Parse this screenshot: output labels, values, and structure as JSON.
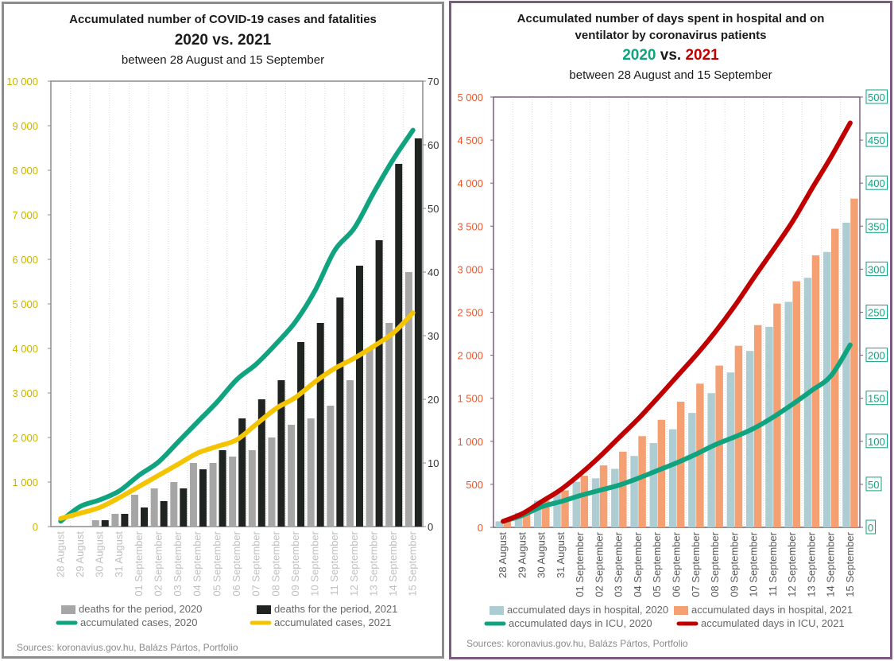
{
  "left": {
    "title": "Accumulated number of COVID-19 cases and fatalities",
    "years_title": "2020 vs. 2021",
    "subtitle": "between 28 August and 15 September",
    "source": "Sources: koronavius.gov.hu, Balázs Pártos, Portfolio"
  },
  "right": {
    "title_line1": "Accumulated number of days spent in hospital and on",
    "title_line2": "ventilator by coronavirus patients",
    "year_a": "2020",
    "vs": " vs. ",
    "year_b": "2021",
    "subtitle": "between 28 August and 15 September",
    "source": "Sources: koronavius.gov.hu, Balázs Pártos, Portfolio"
  },
  "colors": {
    "bar2020_left": "#a6a6a6",
    "bar2021_left": "#1f2420",
    "cases2020": "#10a37f",
    "cases2021": "#f5c400",
    "hosp2020": "#aecdd2",
    "hosp2021": "#f4a072",
    "icu2020": "#10a37f",
    "icu2021": "#c00000",
    "left_y_axis_text": "#c8b400",
    "right_y_left_text": "#e8572a",
    "right_y_right_text": "#10a37f"
  },
  "chart_data": [
    {
      "type": "bar",
      "categories": [
        "28 August",
        "29 August",
        "30 August",
        "31 August",
        "01 September",
        "02 September",
        "03 September",
        "04 September",
        "05 September",
        "06 September",
        "07 September",
        "08 September",
        "09 September",
        "10 September",
        "11 September",
        "12 September",
        "13 September",
        "14 September",
        "15 September"
      ],
      "ylim": [
        0,
        10000
      ],
      "y2lim": [
        0,
        70
      ],
      "yticks": [
        "0",
        "1 000",
        "2 000",
        "3 000",
        "4 000",
        "5 000",
        "6 000",
        "7 000",
        "8 000",
        "9 000",
        "10 000"
      ],
      "y2ticks": [
        "0",
        "10",
        "20",
        "30",
        "40",
        "50",
        "60",
        "70"
      ],
      "legend": {
        "deaths2020": "deaths for the period, 2020",
        "deaths2021": "deaths for the period, 2021",
        "cases2020": "accumulated cases, 2020",
        "cases2021": "accumulated cases, 2021"
      },
      "series": [
        {
          "name": "deaths for the period, 2020",
          "axis": "right",
          "kind": "bar",
          "values": [
            0,
            0,
            1,
            2,
            5,
            6,
            7,
            10,
            10,
            11,
            12,
            14,
            16,
            17,
            19,
            23,
            28,
            32,
            40
          ]
        },
        {
          "name": "deaths for the period, 2021",
          "axis": "right",
          "kind": "bar",
          "values": [
            0,
            0,
            1,
            2,
            3,
            4,
            6,
            9,
            12,
            17,
            20,
            23,
            29,
            32,
            36,
            41,
            45,
            57,
            61
          ]
        },
        {
          "name": "accumulated cases, 2020",
          "axis": "left",
          "kind": "line",
          "values": [
            120,
            450,
            600,
            800,
            1150,
            1450,
            1900,
            2350,
            2800,
            3300,
            3650,
            4100,
            4600,
            5300,
            6200,
            6700,
            7500,
            8250,
            8900
          ]
        },
        {
          "name": "accumulated cases, 2021",
          "axis": "left",
          "kind": "line",
          "values": [
            180,
            300,
            430,
            650,
            900,
            1150,
            1400,
            1650,
            1800,
            1950,
            2300,
            2650,
            2900,
            3250,
            3550,
            3780,
            4050,
            4350,
            4800
          ]
        }
      ]
    },
    {
      "type": "bar",
      "categories": [
        "28 August",
        "29 August",
        "30 August",
        "31 August",
        "01 September",
        "02 September",
        "03 September",
        "04 September",
        "05 September",
        "06 September",
        "07 September",
        "08 September",
        "09 September",
        "10 September",
        "11 September",
        "12 September",
        "13 September",
        "14 September",
        "15 September"
      ],
      "ylim": [
        0,
        5000
      ],
      "y2lim": [
        0,
        500
      ],
      "yticks": [
        "0",
        "500",
        "1 000",
        "1 500",
        "2 000",
        "2 500",
        "3 000",
        "3 500",
        "4 000",
        "4 500",
        "5 000"
      ],
      "y2ticks": [
        "0",
        "50",
        "100",
        "150",
        "200",
        "250",
        "300",
        "350",
        "400",
        "450",
        "500"
      ],
      "legend": {
        "hosp2020": "accumulated days in hospital, 2020",
        "hosp2021": "accumulated days in hospital, 2021",
        "icu2020": "accumulated days in ICU, 2020",
        "icu2021": "accumulated days in ICU, 2021"
      },
      "series": [
        {
          "name": "accumulated days in hospital, 2020",
          "axis": "left",
          "kind": "bar",
          "values": [
            70,
            170,
            310,
            420,
            530,
            570,
            680,
            830,
            980,
            1140,
            1330,
            1560,
            1800,
            2050,
            2330,
            2620,
            2900,
            3200,
            3540
          ]
        },
        {
          "name": "accumulated days in hospital, 2021",
          "axis": "left",
          "kind": "bar",
          "values": [
            70,
            170,
            310,
            430,
            600,
            720,
            880,
            1060,
            1250,
            1460,
            1670,
            1880,
            2110,
            2350,
            2600,
            2860,
            3160,
            3470,
            3820
          ]
        },
        {
          "name": "accumulated days in ICU, 2020",
          "axis": "right",
          "kind": "line",
          "values": [
            7,
            14,
            24,
            30,
            37,
            43,
            49,
            57,
            66,
            75,
            85,
            96,
            105,
            115,
            128,
            143,
            159,
            176,
            212
          ]
        },
        {
          "name": "accumulated days in ICU, 2021",
          "axis": "right",
          "kind": "line",
          "values": [
            7,
            16,
            30,
            44,
            62,
            82,
            104,
            126,
            150,
            175,
            200,
            227,
            257,
            290,
            322,
            355,
            393,
            430,
            470
          ]
        }
      ]
    }
  ]
}
